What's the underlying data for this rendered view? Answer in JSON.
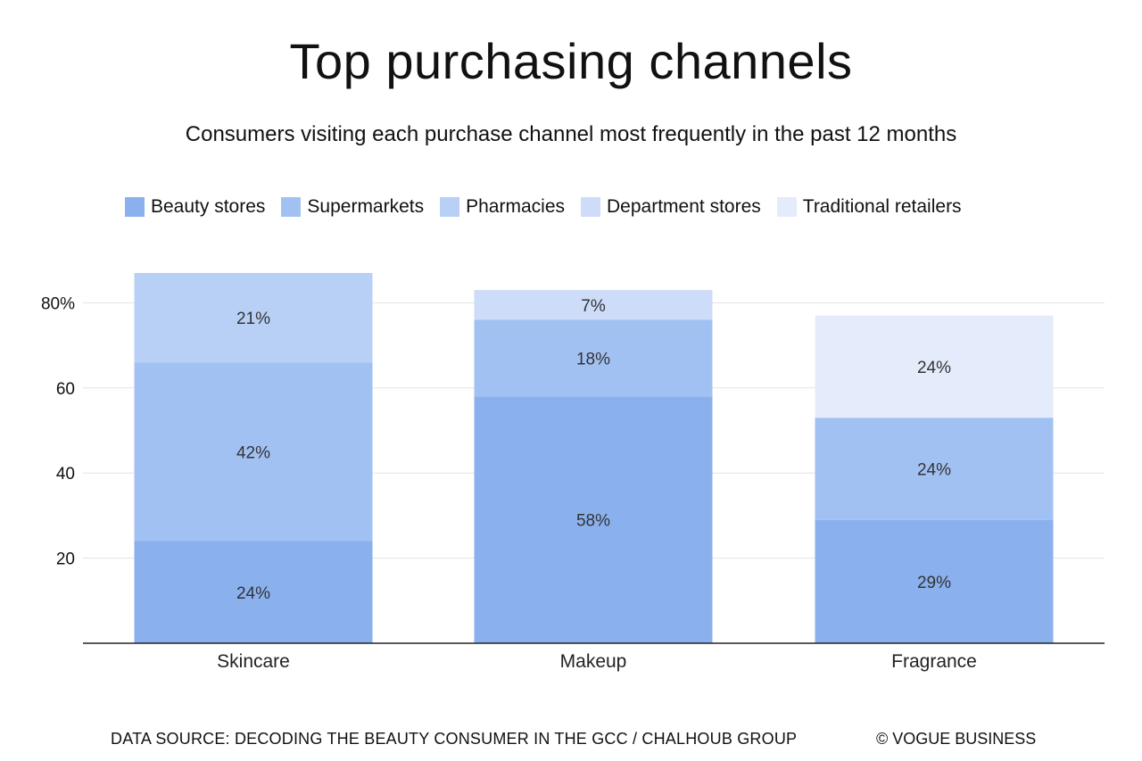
{
  "chart_data": {
    "type": "bar",
    "stacked": true,
    "title": "Top purchasing channels",
    "subtitle": "Consumers visiting each purchase channel most frequently in the past 12 months",
    "categories": [
      "Skincare",
      "Makeup",
      "Fragrance"
    ],
    "series": [
      {
        "name": "Beauty stores",
        "color": "#8ab0ee",
        "values": [
          24,
          58,
          29
        ]
      },
      {
        "name": "Supermarkets",
        "color": "#a2c1f3",
        "values": [
          42,
          18,
          24
        ]
      },
      {
        "name": "Pharmacies",
        "color": "#b8d0f6",
        "values": [
          21,
          null,
          null
        ]
      },
      {
        "name": "Department stores",
        "color": "#cddcf8",
        "values": [
          null,
          7,
          null
        ]
      },
      {
        "name": "Traditional retailers",
        "color": "#e4ecfb",
        "values": [
          null,
          null,
          24
        ]
      }
    ],
    "yticks": [
      {
        "value": 20,
        "label": "20"
      },
      {
        "value": 40,
        "label": "40"
      },
      {
        "value": 60,
        "label": "60"
      },
      {
        "value": 80,
        "label": "80%"
      }
    ],
    "ylim": [
      0,
      90
    ],
    "xlabel": "",
    "ylabel": "",
    "legend_position": "top-left",
    "value_suffix": "%"
  },
  "footer": {
    "source": "DATA SOURCE: DECODING THE BEAUTY CONSUMER IN THE GCC / CHALHOUB GROUP",
    "credit": "© VOGUE BUSINESS"
  }
}
